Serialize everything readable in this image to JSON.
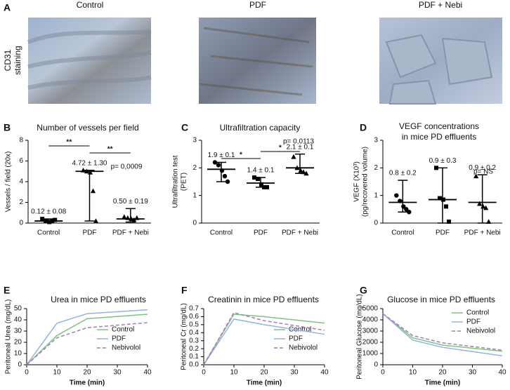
{
  "panel_a": {
    "panel": "A",
    "titles": [
      "Control",
      "PDF",
      "PDF + Nebi"
    ],
    "stain_label": [
      "CD31",
      "staining"
    ]
  },
  "chart_data": [
    {
      "type": "dot",
      "panel": "B",
      "title": [
        "Number of vessels per field"
      ],
      "ylabel": [
        "Vessels / field (20x)"
      ],
      "categories": [
        "Control",
        "PDF",
        "PDF + Nebi"
      ],
      "markers": [
        "square",
        "triangle",
        "triangle"
      ],
      "points": [
        [
          0.4,
          0.2,
          0.1,
          0.2,
          0.3
        ],
        [
          5.1,
          5.0,
          4.9,
          3.1,
          0.2
        ],
        [
          0.6,
          0.5,
          0.4,
          0.3,
          0.5
        ]
      ],
      "medians": [
        0.2,
        5.0,
        0.4
      ],
      "lows": [
        0.1,
        0.2,
        0.1
      ],
      "highs": [
        0.4,
        5.1,
        1.4
      ],
      "group_labels": [
        "0.12 ± 0.08",
        "4.72 ± 1.30",
        "0.50 ± 0.19"
      ],
      "sig_labels": [
        "**",
        "**"
      ],
      "p_label": "p= 0,0009",
      "ylim": [
        0,
        8
      ],
      "yticks": [
        0,
        2,
        4,
        6,
        8
      ]
    },
    {
      "type": "dot",
      "panel": "C",
      "title": [
        "Ultrafiltration capacity"
      ],
      "ylabel": [
        "Ultrafiltration test",
        "(PET)"
      ],
      "categories": [
        "Control",
        "PDF",
        "PDF + Nebi"
      ],
      "markers": [
        "circle",
        "square",
        "triangle"
      ],
      "points": [
        [
          2.2,
          2.1,
          1.9,
          1.7,
          1.5
        ],
        [
          1.65,
          1.6,
          1.4,
          1.3,
          1.3
        ],
        [
          2.4,
          2.0,
          1.9,
          1.85,
          1.8
        ]
      ],
      "medians": [
        1.95,
        1.45,
        2.0
      ],
      "lows": [
        1.5,
        1.3,
        1.8
      ],
      "highs": [
        2.2,
        1.65,
        2.5
      ],
      "group_labels": [
        "1.9 ± 0.1",
        "1.4 ± 0.1",
        "2.1 ± 0.1"
      ],
      "sig_labels": [
        "*",
        "*"
      ],
      "p_label": "p= 0,0113",
      "ylim": [
        0,
        3
      ],
      "yticks": [
        0,
        1,
        2,
        3
      ]
    },
    {
      "type": "dot",
      "panel": "D",
      "title": [
        "VEGF concentrations",
        "in mice PD effluents"
      ],
      "ylabel": [
        "VEGF (X10³)",
        "(pg/recovered volume)"
      ],
      "categories": [
        "Control",
        "PDF",
        "PDF + Nebi"
      ],
      "markers": [
        "circle",
        "square",
        "triangle"
      ],
      "points": [
        [
          1.0,
          0.8,
          0.6,
          0.5,
          0.4
        ],
        [
          2.0,
          0.9,
          0.85,
          0.6,
          0.05
        ],
        [
          1.7,
          0.7,
          0.6,
          0.55,
          0.05
        ]
      ],
      "medians": [
        0.75,
        0.85,
        0.75
      ],
      "lows": [
        0.4,
        0.0,
        0.0
      ],
      "highs": [
        1.55,
        2.0,
        1.75
      ],
      "group_labels": [
        "0.8 ± 0.2",
        "0.9 ± 0.3",
        "0.9 ± 0.2"
      ],
      "p_label": "p= NS",
      "ylim": [
        0,
        3
      ],
      "yticks": [
        0,
        1,
        2,
        3
      ]
    },
    {
      "type": "line",
      "panel": "E",
      "title": [
        "Urea in mice PD effluents"
      ],
      "ylabel": [
        "Peritoneal Urea (mg/dL)"
      ],
      "xlabel": "Time (min)",
      "x": [
        0,
        10,
        20,
        40
      ],
      "xlim": [
        0,
        40
      ],
      "xticks": [
        0,
        10,
        20,
        30,
        40
      ],
      "ylim": [
        0,
        50
      ],
      "yticks": [
        0,
        10,
        20,
        30,
        40,
        50
      ],
      "legend_loc": "lower right",
      "series": [
        {
          "name": "Control",
          "color": "#7fc17f",
          "dashed": false,
          "values": [
            0,
            26,
            41,
            45
          ]
        },
        {
          "name": "PDF",
          "color": "#92b3e0",
          "dashed": false,
          "values": [
            0,
            37,
            45.5,
            49
          ]
        },
        {
          "name": "Nebivolol",
          "color": "#a47cb6",
          "dashed": true,
          "values": [
            0,
            24,
            33,
            37.5
          ]
        }
      ]
    },
    {
      "type": "line",
      "panel": "F",
      "title": [
        "Creatinin in mice PD effluents"
      ],
      "ylabel": [
        "Peritoneal Cr (mg/dL)"
      ],
      "xlabel": "Time (min)",
      "x": [
        0,
        10,
        20,
        40
      ],
      "xlim": [
        0,
        40
      ],
      "xticks": [
        0,
        10,
        20,
        30,
        40
      ],
      "ylim": [
        0,
        0.7
      ],
      "yticks": [
        {
          "value": 0,
          "label": "0.0"
        },
        0.1,
        0.2,
        0.3,
        0.4,
        0.5,
        0.6,
        0.7
      ],
      "legend_loc": "lower right",
      "series": [
        {
          "name": "Control",
          "color": "#7fc17f",
          "dashed": false,
          "values": [
            0,
            0.63,
            0.6,
            0.52
          ]
        },
        {
          "name": "PDF",
          "color": "#92b3e0",
          "dashed": false,
          "values": [
            0,
            0.57,
            0.5,
            0.38
          ]
        },
        {
          "name": "Nebivolol",
          "color": "#a47cb6",
          "dashed": true,
          "values": [
            0,
            0.65,
            0.55,
            0.43
          ]
        }
      ]
    },
    {
      "type": "line",
      "panel": "G",
      "title": [
        "Glucose in mice PD effluents"
      ],
      "ylabel": [
        "Peritoneal Glucose (mg/dL)"
      ],
      "xlabel": "Time (min)",
      "x": [
        0,
        10,
        20,
        40
      ],
      "xlim": [
        0,
        40
      ],
      "xticks": [
        0,
        10,
        20,
        30,
        40
      ],
      "ylim": [
        0,
        5000
      ],
      "yticks": [
        0,
        1000,
        2000,
        3000,
        4000,
        5000
      ],
      "legend_loc": "upper right",
      "series": [
        {
          "name": "Control",
          "color": "#7fc17f",
          "dashed": false,
          "values": [
            4550,
            2400,
            1750,
            1200
          ]
        },
        {
          "name": "PDF",
          "color": "#92b3e0",
          "dashed": false,
          "values": [
            4550,
            2200,
            1550,
            800
          ]
        },
        {
          "name": "Nebivolol",
          "color": "#a47cb6",
          "dashed": true,
          "values": [
            4550,
            2600,
            1950,
            1300
          ]
        }
      ]
    }
  ]
}
